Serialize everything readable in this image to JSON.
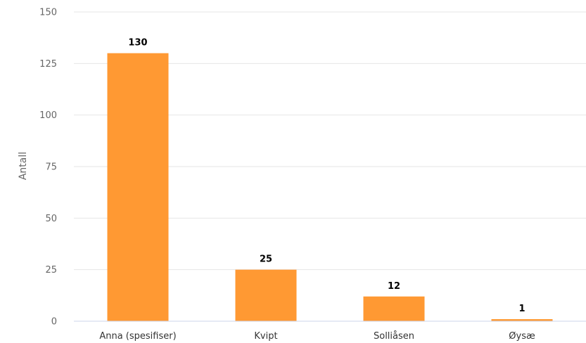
{
  "chart_data": {
    "type": "bar",
    "categories": [
      "Anna (spesifiser)",
      "Kvipt",
      "Solliåsen",
      "Øysæ"
    ],
    "values": [
      130,
      25,
      12,
      1
    ],
    "data_labels": [
      "130",
      "25",
      "12",
      "1"
    ],
    "title": "",
    "xlabel": "",
    "ylabel": "Antall",
    "ylim": [
      0,
      150
    ],
    "yticks": [
      0,
      25,
      50,
      75,
      100,
      125,
      150
    ],
    "ytick_labels": [
      "0",
      "25",
      "50",
      "75",
      "100",
      "125",
      "150"
    ],
    "grid": true,
    "legend": "none",
    "bar_color": "#ff9933"
  }
}
